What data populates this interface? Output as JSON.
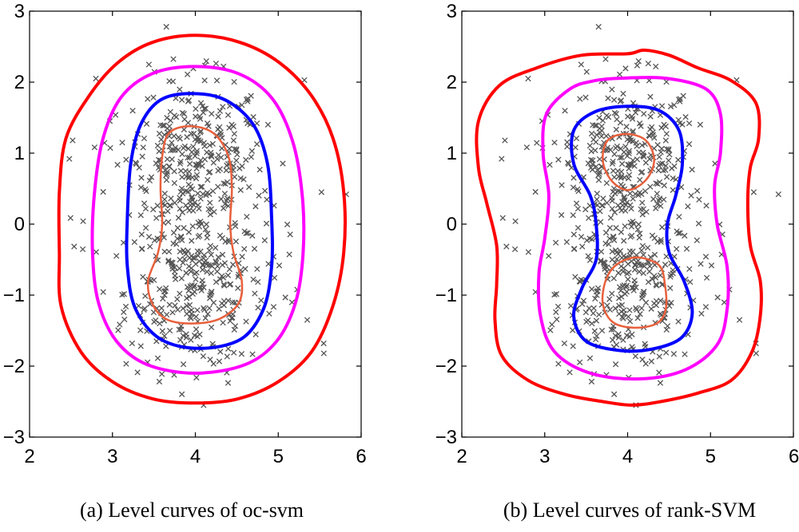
{
  "chart_data": [
    {
      "type": "scatter",
      "caption": "(a) Level curves of oc-svm",
      "xlim": [
        2,
        6
      ],
      "ylim": [
        -3,
        3
      ],
      "xticks": [
        "2",
        "3",
        "4",
        "5",
        "6"
      ],
      "yticks": [
        "−3",
        "−2",
        "−1",
        "0",
        "1",
        "2",
        "3"
      ],
      "marker": "x",
      "marker_color": "#555555",
      "contours": [
        {
          "color": "#ff0000",
          "stroke": 4,
          "points": [
            [
              4.0,
              2.66
            ],
            [
              4.54,
              2.56
            ],
            [
              5.02,
              2.27
            ],
            [
              5.4,
              1.81
            ],
            [
              5.66,
              1.21
            ],
            [
              5.79,
              0.45
            ],
            [
              5.79,
              -0.4
            ],
            [
              5.66,
              -1.15
            ],
            [
              5.4,
              -1.8
            ],
            [
              5.0,
              -2.22
            ],
            [
              4.52,
              -2.46
            ],
            [
              4.0,
              -2.52
            ],
            [
              3.48,
              -2.46
            ],
            [
              3.0,
              -2.22
            ],
            [
              2.62,
              -1.8
            ],
            [
              2.38,
              -1.15
            ],
            [
              2.36,
              -0.4
            ],
            [
              2.36,
              0.45
            ],
            [
              2.44,
              1.21
            ],
            [
              2.72,
              1.81
            ],
            [
              3.06,
              2.27
            ],
            [
              3.48,
              2.56
            ]
          ]
        },
        {
          "color": "#ff00ff",
          "stroke": 4,
          "points": [
            [
              4.0,
              2.22
            ],
            [
              4.52,
              2.12
            ],
            [
              4.92,
              1.78
            ],
            [
              5.17,
              1.18
            ],
            [
              5.29,
              0.4
            ],
            [
              5.3,
              -0.4
            ],
            [
              5.21,
              -1.1
            ],
            [
              4.98,
              -1.65
            ],
            [
              4.6,
              -1.98
            ],
            [
              4.0,
              -2.1
            ],
            [
              3.42,
              -1.98
            ],
            [
              3.05,
              -1.65
            ],
            [
              2.83,
              -1.1
            ],
            [
              2.76,
              -0.4
            ],
            [
              2.78,
              0.4
            ],
            [
              2.88,
              1.18
            ],
            [
              3.1,
              1.78
            ],
            [
              3.48,
              2.12
            ]
          ]
        },
        {
          "color": "#0000ff",
          "stroke": 4,
          "points": [
            [
              3.95,
              1.84
            ],
            [
              4.36,
              1.75
            ],
            [
              4.7,
              1.4
            ],
            [
              4.87,
              0.85
            ],
            [
              4.92,
              0.1
            ],
            [
              4.92,
              -0.6
            ],
            [
              4.82,
              -1.2
            ],
            [
              4.55,
              -1.62
            ],
            [
              4.05,
              -1.75
            ],
            [
              3.58,
              -1.62
            ],
            [
              3.28,
              -1.2
            ],
            [
              3.18,
              -0.6
            ],
            [
              3.18,
              0.1
            ],
            [
              3.22,
              0.85
            ],
            [
              3.34,
              1.4
            ],
            [
              3.58,
              1.75
            ]
          ]
        },
        {
          "color": "#e8603c",
          "stroke": 2.5,
          "points": [
            [
              3.93,
              1.38
            ],
            [
              4.22,
              1.28
            ],
            [
              4.4,
              0.95
            ],
            [
              4.44,
              0.5
            ],
            [
              4.42,
              0.0
            ],
            [
              4.46,
              -0.4
            ],
            [
              4.56,
              -0.8
            ],
            [
              4.52,
              -1.12
            ],
            [
              4.28,
              -1.34
            ],
            [
              3.95,
              -1.4
            ],
            [
              3.65,
              -1.34
            ],
            [
              3.48,
              -1.12
            ],
            [
              3.43,
              -0.8
            ],
            [
              3.55,
              -0.4
            ],
            [
              3.6,
              0.0
            ],
            [
              3.58,
              0.5
            ],
            [
              3.6,
              0.95
            ],
            [
              3.68,
              1.28
            ]
          ]
        }
      ]
    },
    {
      "type": "scatter",
      "caption": "(b) Level curves of rank-SVM",
      "xlim": [
        2,
        6
      ],
      "ylim": [
        -3,
        3
      ],
      "xticks": [
        "2",
        "3",
        "4",
        "5",
        "6"
      ],
      "yticks": [
        "−3",
        "−2",
        "−1",
        "0",
        "1",
        "2",
        "3"
      ],
      "marker": "x",
      "marker_color": "#555555",
      "contours": [
        {
          "color": "#ff0000",
          "stroke": 4,
          "points": [
            [
              4.0,
              2.4
            ],
            [
              4.2,
              2.45
            ],
            [
              4.5,
              2.38
            ],
            [
              4.85,
              2.2
            ],
            [
              5.25,
              2.02
            ],
            [
              5.55,
              1.7
            ],
            [
              5.58,
              1.2
            ],
            [
              5.48,
              0.8
            ],
            [
              5.45,
              0.3
            ],
            [
              5.48,
              -0.3
            ],
            [
              5.6,
              -0.8
            ],
            [
              5.6,
              -1.3
            ],
            [
              5.5,
              -1.8
            ],
            [
              5.25,
              -2.2
            ],
            [
              4.85,
              -2.38
            ],
            [
              4.4,
              -2.5
            ],
            [
              4.05,
              -2.55
            ],
            [
              3.7,
              -2.5
            ],
            [
              3.25,
              -2.4
            ],
            [
              2.8,
              -2.2
            ],
            [
              2.48,
              -1.85
            ],
            [
              2.4,
              -1.35
            ],
            [
              2.42,
              -0.85
            ],
            [
              2.42,
              -0.3
            ],
            [
              2.3,
              0.3
            ],
            [
              2.2,
              0.8
            ],
            [
              2.2,
              1.45
            ],
            [
              2.45,
              1.95
            ],
            [
              2.9,
              2.2
            ],
            [
              3.45,
              2.38
            ]
          ]
        },
        {
          "color": "#ff00ff",
          "stroke": 4,
          "points": [
            [
              4.0,
              2.06
            ],
            [
              4.5,
              2.05
            ],
            [
              4.95,
              1.9
            ],
            [
              5.12,
              1.55
            ],
            [
              5.12,
              1.0
            ],
            [
              5.05,
              0.55
            ],
            [
              5.08,
              0.0
            ],
            [
              5.2,
              -0.6
            ],
            [
              5.2,
              -1.2
            ],
            [
              5.08,
              -1.7
            ],
            [
              4.7,
              -2.05
            ],
            [
              4.15,
              -2.18
            ],
            [
              3.55,
              -2.1
            ],
            [
              3.12,
              -1.8
            ],
            [
              2.95,
              -1.3
            ],
            [
              2.93,
              -0.7
            ],
            [
              3.0,
              -0.2
            ],
            [
              3.05,
              0.4
            ],
            [
              2.98,
              1.0
            ],
            [
              3.02,
              1.55
            ],
            [
              3.3,
              1.9
            ],
            [
              3.6,
              2.02
            ]
          ]
        },
        {
          "color": "#0000ff",
          "stroke": 4,
          "points": [
            [
              4.0,
              1.66
            ],
            [
              4.38,
              1.6
            ],
            [
              4.62,
              1.32
            ],
            [
              4.66,
              0.85
            ],
            [
              4.58,
              0.4
            ],
            [
              4.48,
              0.0
            ],
            [
              4.5,
              -0.4
            ],
            [
              4.68,
              -0.8
            ],
            [
              4.78,
              -1.25
            ],
            [
              4.65,
              -1.6
            ],
            [
              4.3,
              -1.76
            ],
            [
              3.9,
              -1.78
            ],
            [
              3.5,
              -1.65
            ],
            [
              3.35,
              -1.3
            ],
            [
              3.45,
              -0.9
            ],
            [
              3.62,
              -0.5
            ],
            [
              3.62,
              0.0
            ],
            [
              3.55,
              0.4
            ],
            [
              3.35,
              0.85
            ],
            [
              3.35,
              1.32
            ],
            [
              3.6,
              1.58
            ]
          ]
        },
        {
          "color": "#e8603c",
          "stroke": 2.5,
          "points": [
            [
              3.98,
              1.27
            ],
            [
              4.22,
              1.18
            ],
            [
              4.32,
              0.9
            ],
            [
              4.22,
              0.62
            ],
            [
              4.0,
              0.48
            ],
            [
              3.8,
              0.62
            ],
            [
              3.7,
              0.9
            ],
            [
              3.76,
              1.18
            ]
          ]
        },
        {
          "color": "#e8603c",
          "stroke": 2.5,
          "points": [
            [
              4.12,
              -0.47
            ],
            [
              4.38,
              -0.58
            ],
            [
              4.45,
              -0.85
            ],
            [
              4.46,
              -1.2
            ],
            [
              4.35,
              -1.4
            ],
            [
              4.08,
              -1.46
            ],
            [
              3.82,
              -1.38
            ],
            [
              3.7,
              -1.12
            ],
            [
              3.74,
              -0.78
            ],
            [
              3.88,
              -0.56
            ]
          ]
        }
      ]
    }
  ]
}
